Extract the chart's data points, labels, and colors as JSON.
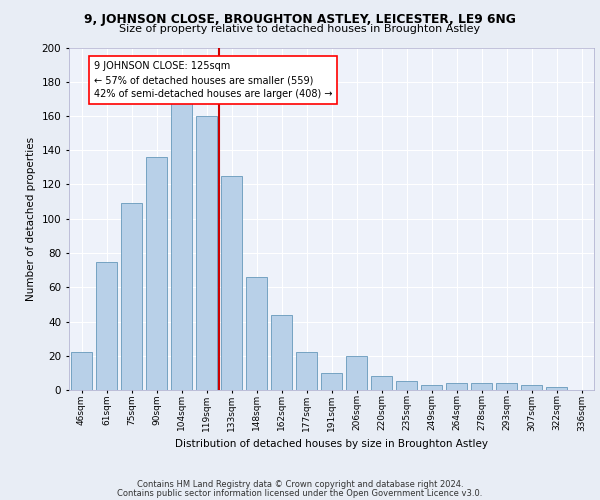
{
  "title1": "9, JOHNSON CLOSE, BROUGHTON ASTLEY, LEICESTER, LE9 6NG",
  "title2": "Size of property relative to detached houses in Broughton Astley",
  "xlabel": "Distribution of detached houses by size in Broughton Astley",
  "ylabel": "Number of detached properties",
  "categories": [
    "46sqm",
    "61sqm",
    "75sqm",
    "90sqm",
    "104sqm",
    "119sqm",
    "133sqm",
    "148sqm",
    "162sqm",
    "177sqm",
    "191sqm",
    "206sqm",
    "220sqm",
    "235sqm",
    "249sqm",
    "264sqm",
    "278sqm",
    "293sqm",
    "307sqm",
    "322sqm",
    "336sqm"
  ],
  "values": [
    22,
    75,
    109,
    136,
    170,
    160,
    125,
    66,
    44,
    22,
    10,
    20,
    8,
    5,
    3,
    4,
    4,
    4,
    3,
    2,
    0
  ],
  "bar_color": "#b8d0e8",
  "bar_edge_color": "#6699bb",
  "vline_color": "#cc0000",
  "vline_x": 5.5,
  "annotation_text": "9 JOHNSON CLOSE: 125sqm\n← 57% of detached houses are smaller (559)\n42% of semi-detached houses are larger (408) →",
  "ylim": [
    0,
    200
  ],
  "yticks": [
    0,
    20,
    40,
    60,
    80,
    100,
    120,
    140,
    160,
    180,
    200
  ],
  "footer_line1": "Contains HM Land Registry data © Crown copyright and database right 2024.",
  "footer_line2": "Contains public sector information licensed under the Open Government Licence v3.0.",
  "bg_color": "#e8edf5",
  "plot_bg_color": "#eef2fa"
}
